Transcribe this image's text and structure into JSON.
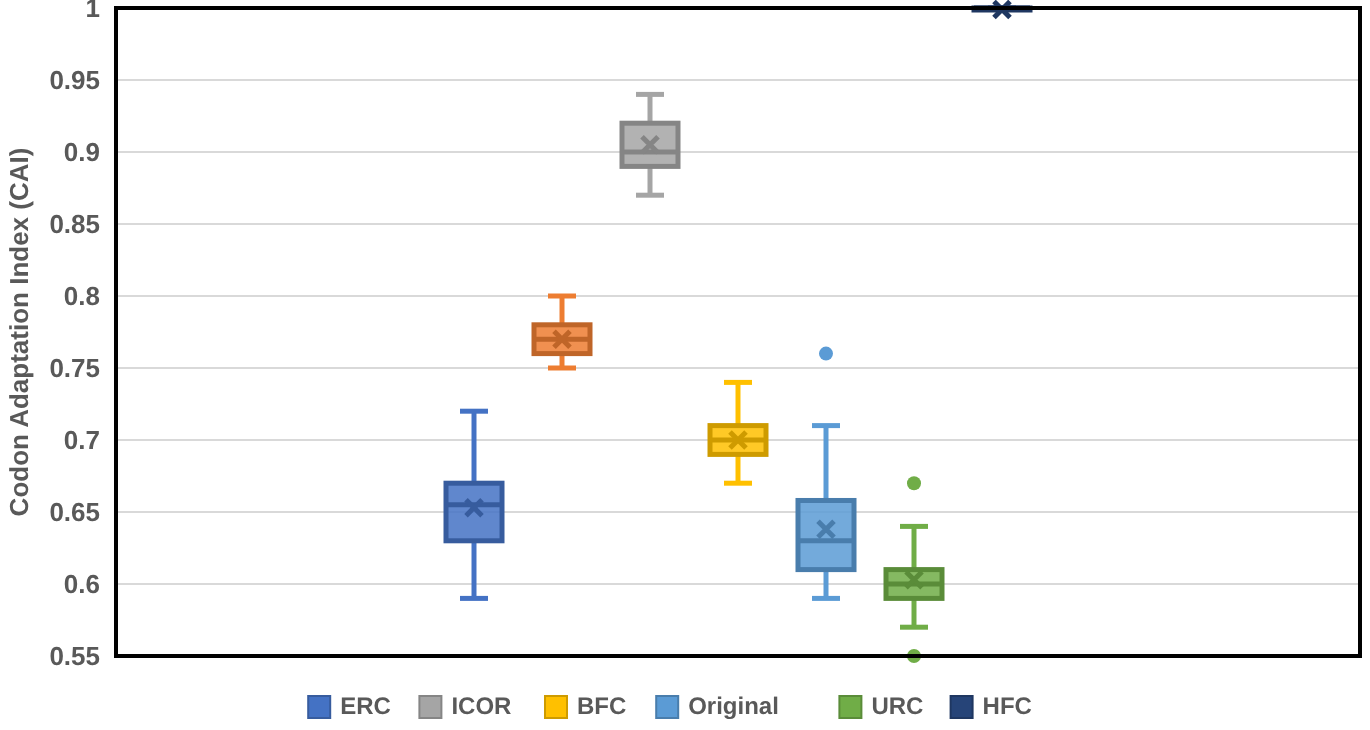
{
  "chart_data": {
    "type": "box",
    "ylabel": "Codon Adaptation Index (CAI)",
    "categories": [
      null
    ],
    "series": [
      {
        "name": "ERC",
        "color": "#4472c4",
        "boxes": [
          {
            "low": 0.59,
            "q1": 0.63,
            "median": 0.655,
            "q3": 0.67,
            "high": 0.72,
            "mean": 0.653
          }
        ]
      },
      {
        "color": "#ed7d31",
        "boxes": [
          {
            "low": 0.75,
            "q1": 0.76,
            "median": 0.77,
            "q3": 0.78,
            "high": 0.8,
            "mean": 0.77
          }
        ]
      },
      {
        "name": "ICOR",
        "color": "#a5a5a5",
        "boxes": [
          {
            "low": 0.87,
            "q1": 0.89,
            "median": 0.9,
            "q3": 0.92,
            "high": 0.94,
            "mean": 0.905
          }
        ]
      },
      {
        "name": "BFC",
        "color": "#ffc000",
        "boxes": [
          {
            "low": 0.67,
            "q1": 0.69,
            "median": 0.7,
            "q3": 0.71,
            "high": 0.74,
            "mean": 0.7
          }
        ]
      },
      {
        "name": "Original",
        "color": "#5b9bd5",
        "boxes": [
          {
            "low": 0.59,
            "q1": 0.61,
            "median": 0.63,
            "q3": 0.658,
            "high": 0.71,
            "mean": 0.638,
            "outliers": [
              0.76
            ]
          }
        ]
      },
      {
        "name": "URC",
        "color": "#70ad47",
        "boxes": [
          {
            "low": 0.57,
            "q1": 0.59,
            "median": 0.6,
            "q3": 0.61,
            "high": 0.64,
            "mean": 0.603,
            "outliers": [
              0.67,
              0.55
            ]
          }
        ]
      },
      {
        "name": "HFC",
        "color": "#264478",
        "boxes": [
          {
            "low": 0.999,
            "q1": 0.999,
            "median": 1,
            "q3": 1,
            "high": 1,
            "mean": 0.999
          }
        ]
      }
    ],
    "ylim": [
      0.55,
      1
    ],
    "yticks": [
      0.55,
      0.6,
      0.65,
      0.7,
      0.75,
      0.8,
      0.85,
      0.9,
      0.95,
      1
    ],
    "grid": "y",
    "legend": "bottom"
  }
}
